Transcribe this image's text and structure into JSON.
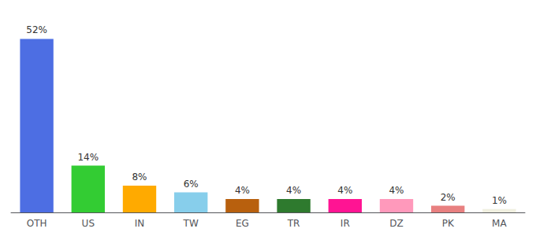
{
  "chart_data": {
    "type": "bar",
    "categories": [
      "OTH",
      "US",
      "IN",
      "TW",
      "EG",
      "TR",
      "IR",
      "DZ",
      "PK",
      "MA"
    ],
    "values": [
      52,
      14,
      8,
      6,
      4,
      4,
      4,
      4,
      2,
      1
    ],
    "value_labels": [
      "52%",
      "14%",
      "8%",
      "6%",
      "4%",
      "4%",
      "4%",
      "4%",
      "2%",
      "1%"
    ],
    "colors": [
      "#4d6ee3",
      "#33cc33",
      "#ffaa00",
      "#87ceeb",
      "#b8600e",
      "#2e7a2e",
      "#ff1493",
      "#ff99bb",
      "#e88080",
      "#f0efe0"
    ],
    "ylim": [
      0,
      58
    ],
    "data_labels": true,
    "tick_labels": "x",
    "grid": false
  }
}
